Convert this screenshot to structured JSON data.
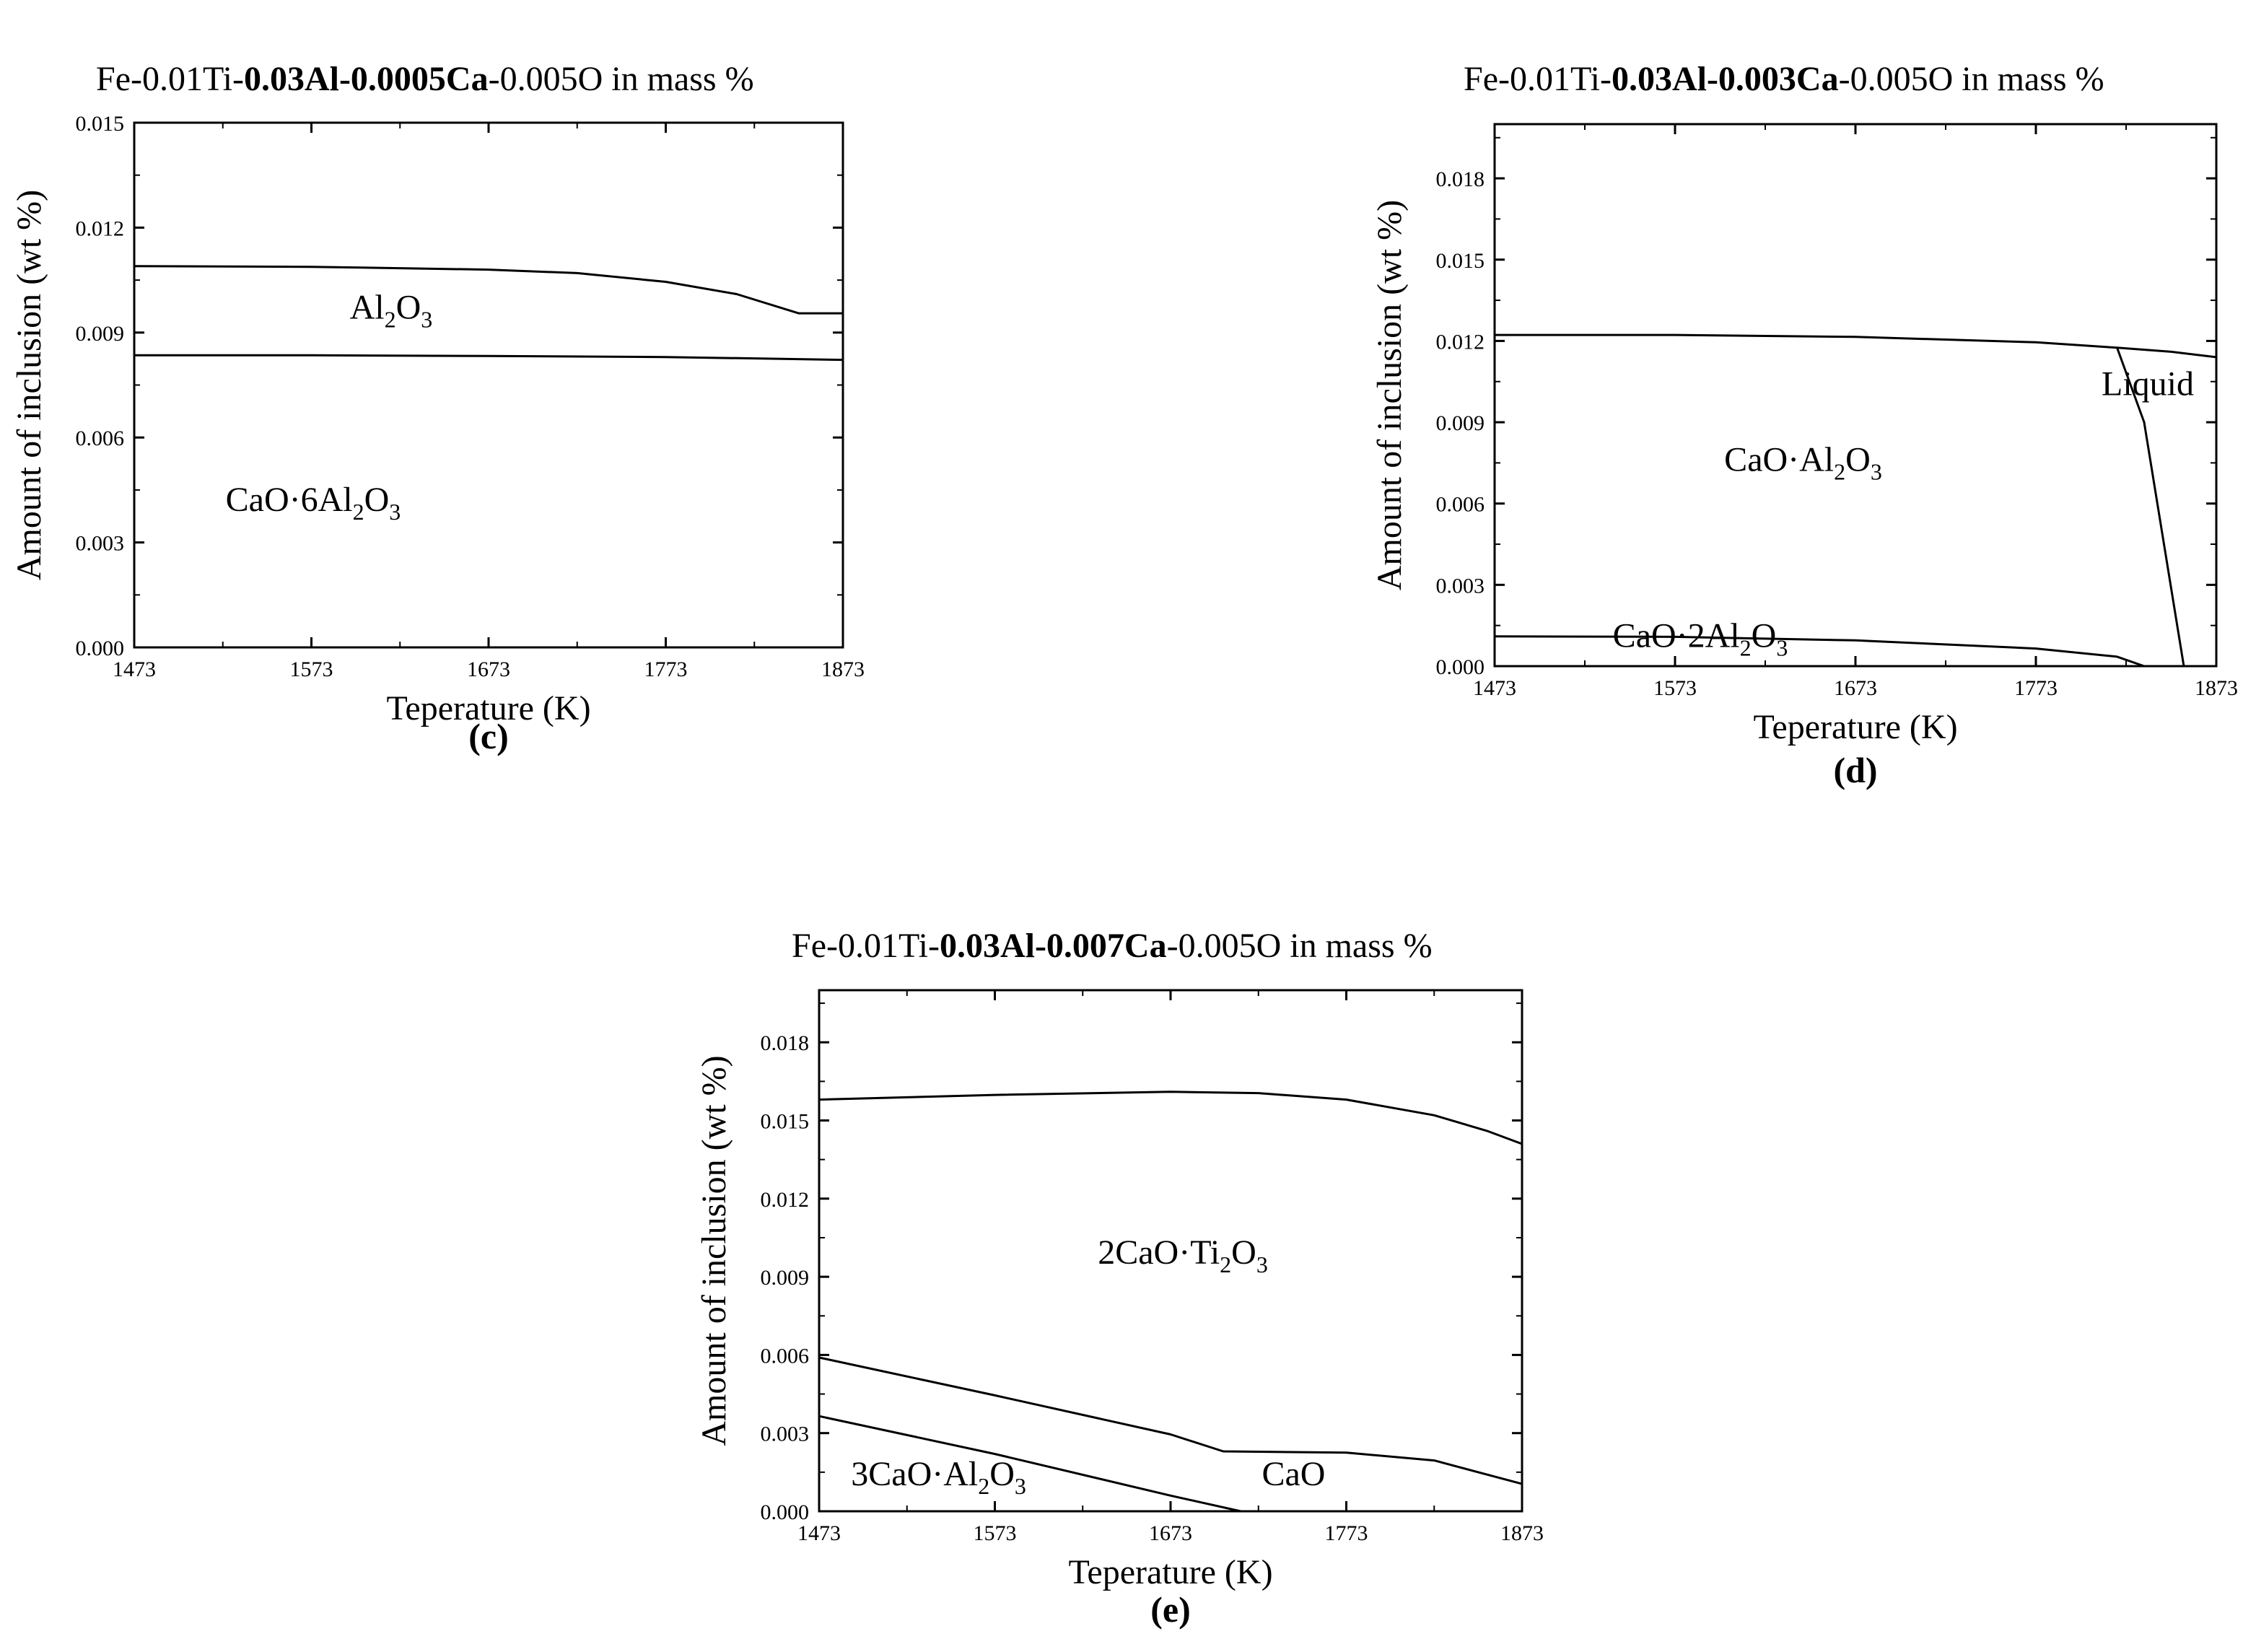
{
  "chart_data": [
    {
      "type": "area",
      "panel_label": "(c)",
      "title": {
        "pre": "Fe-0.01Ti-",
        "bold": "0.03Al-0.0005Ca",
        "post": "-0.005O in mass %"
      },
      "xlabel": "Teperature (K)",
      "ylabel": "Amount of inclusion (wt %)",
      "xlim": [
        1473,
        1873
      ],
      "ylim": [
        0,
        0.015
      ],
      "xticks": [
        1473,
        1573,
        1673,
        1773,
        1873
      ],
      "yticks": [
        0.0,
        0.003,
        0.006,
        0.009,
        0.012,
        0.015
      ],
      "ytick_decimals": 3,
      "curves": [
        {
          "name": "CaO·6Al2O3 / Al2O3 boundary",
          "points": [
            [
              1473,
              0.00835
            ],
            [
              1573,
              0.00835
            ],
            [
              1673,
              0.00833
            ],
            [
              1773,
              0.0083
            ],
            [
              1873,
              0.00822
            ]
          ]
        },
        {
          "name": "Al2O3 upper boundary",
          "points": [
            [
              1473,
              0.0109
            ],
            [
              1573,
              0.01088
            ],
            [
              1673,
              0.0108
            ],
            [
              1723,
              0.0107
            ],
            [
              1773,
              0.01045
            ],
            [
              1813,
              0.0101
            ],
            [
              1848,
              0.00955
            ],
            [
              1873,
              0.00955
            ]
          ]
        }
      ],
      "regions": [
        {
          "text": "Al",
          "sub1": "2",
          "mid": "O",
          "sub2": "3",
          "x": 1618,
          "y": 0.0094
        },
        {
          "text": "CaO·6Al",
          "sub1": "2",
          "mid": "O",
          "sub2": "3",
          "x": 1574,
          "y": 0.0039
        }
      ]
    },
    {
      "type": "area",
      "panel_label": "(d)",
      "title": {
        "pre": "Fe-0.01Ti-",
        "bold": "0.03Al-0.003Ca",
        "post": "-0.005O in mass %"
      },
      "xlabel": "Teperature (K)",
      "ylabel": "Amount of inclusion (wt %)",
      "xlim": [
        1473,
        1873
      ],
      "ylim": [
        0,
        0.02
      ],
      "xticks": [
        1473,
        1573,
        1673,
        1773,
        1873
      ],
      "yticks": [
        0.0,
        0.003,
        0.006,
        0.009,
        0.012,
        0.015,
        0.018
      ],
      "ytick_decimals": 3,
      "curves": [
        {
          "name": "total",
          "points": [
            [
              1473,
              0.01222
            ],
            [
              1573,
              0.01222
            ],
            [
              1673,
              0.01215
            ],
            [
              1773,
              0.01195
            ],
            [
              1818,
              0.01175
            ],
            [
              1848,
              0.0116
            ],
            [
              1873,
              0.0114
            ]
          ]
        },
        {
          "name": "CaO·2Al2O3 upper boundary",
          "points": [
            [
              1473,
              0.0011
            ],
            [
              1573,
              0.00108
            ],
            [
              1673,
              0.00095
            ],
            [
              1773,
              0.00065
            ],
            [
              1818,
              0.00035
            ],
            [
              1833,
              0.0
            ]
          ]
        },
        {
          "name": "Liquid boundary",
          "points": [
            [
              1818,
              0.01175
            ],
            [
              1833,
              0.009
            ],
            [
              1855,
              0.0
            ]
          ]
        }
      ],
      "regions": [
        {
          "text": "CaO·Al",
          "sub1": "2",
          "mid": "O",
          "sub2": "3",
          "x": 1644,
          "y": 0.0072
        },
        {
          "text": "CaO·2Al",
          "sub1": "2",
          "mid": "O",
          "sub2": "3",
          "x": 1587,
          "y": 0.0007
        },
        {
          "text": "Liquid",
          "x": 1835,
          "y": 0.01
        }
      ]
    },
    {
      "type": "area",
      "panel_label": "(e)",
      "title": {
        "pre": "Fe-0.01Ti-",
        "bold": "0.03Al-0.007Ca",
        "post": "-0.005O in mass %"
      },
      "xlabel": "Teperature (K)",
      "ylabel": "Amount of inclusion (wt %)",
      "xlim": [
        1473,
        1873
      ],
      "ylim": [
        0,
        0.02
      ],
      "xticks": [
        1473,
        1573,
        1673,
        1773,
        1873
      ],
      "yticks": [
        0.0,
        0.003,
        0.006,
        0.009,
        0.012,
        0.015,
        0.018
      ],
      "ytick_decimals": 3,
      "curves": [
        {
          "name": "total",
          "points": [
            [
              1473,
              0.0158
            ],
            [
              1573,
              0.01598
            ],
            [
              1673,
              0.0161
            ],
            [
              1723,
              0.01605
            ],
            [
              1773,
              0.0158
            ],
            [
              1823,
              0.0152
            ],
            [
              1853,
              0.0146
            ],
            [
              1873,
              0.0141
            ]
          ]
        },
        {
          "name": "CaO upper boundary",
          "points": [
            [
              1473,
              0.0059
            ],
            [
              1573,
              0.00445
            ],
            [
              1673,
              0.00295
            ],
            [
              1703,
              0.0023
            ],
            [
              1773,
              0.00225
            ],
            [
              1823,
              0.00195
            ],
            [
              1873,
              0.00105
            ]
          ]
        },
        {
          "name": "3CaO·Al2O3 upper boundary",
          "points": [
            [
              1473,
              0.00365
            ],
            [
              1573,
              0.0022
            ],
            [
              1673,
              0.0006
            ],
            [
              1713,
              0.0
            ]
          ]
        }
      ],
      "regions": [
        {
          "text": "2CaO·Ti",
          "sub1": "2",
          "mid": "O",
          "sub2": "3",
          "x": 1680,
          "y": 0.0095
        },
        {
          "text": "3CaO·Al",
          "sub1": "2",
          "mid": "O",
          "sub2": "3",
          "x": 1541,
          "y": 0.001
        },
        {
          "text": "CaO",
          "x": 1743,
          "y": 0.001
        }
      ]
    }
  ]
}
